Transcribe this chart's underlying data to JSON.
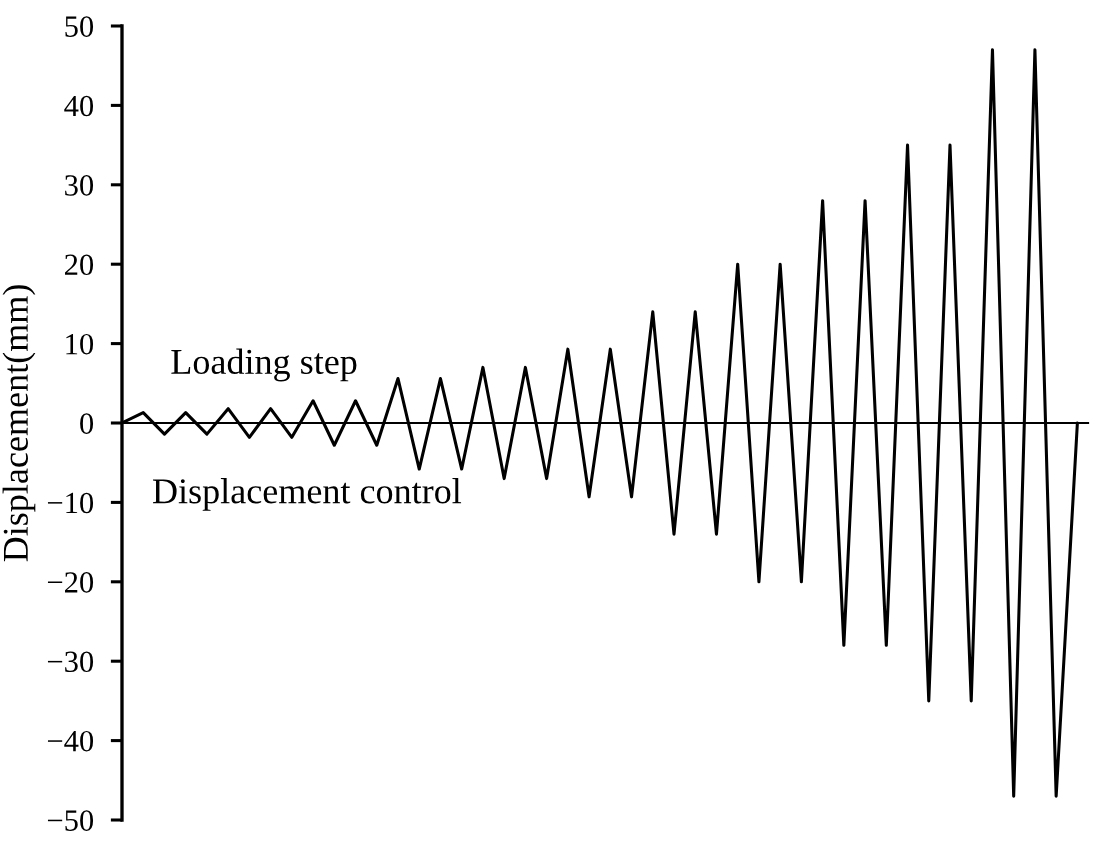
{
  "chart_data": {
    "type": "line",
    "ylabel": "Displacement(mm)",
    "categories": [
      null,
      null,
      null,
      null,
      null,
      null,
      null,
      null,
      null,
      null,
      null,
      null,
      null,
      null,
      null,
      null,
      null,
      null,
      null,
      null,
      null,
      null,
      null,
      null,
      null,
      null,
      null,
      null,
      null,
      null,
      null,
      null,
      null,
      null,
      null,
      null,
      null,
      null,
      null,
      null,
      null,
      null,
      null,
      null,
      null,
      null
    ],
    "series": [
      {
        "color": "#000000",
        "values": [
          0,
          1.3,
          -1.4,
          1.3,
          -1.4,
          1.8,
          -1.8,
          1.8,
          -1.8,
          2.8,
          -2.8,
          2.8,
          -2.8,
          5.6,
          -5.8,
          5.6,
          -5.8,
          7,
          -7,
          7,
          -7,
          9.3,
          -9.3,
          9.3,
          -9.3,
          14,
          -14,
          14,
          -14,
          20,
          -20,
          20,
          -20,
          28,
          -28,
          28,
          -28,
          35,
          -35,
          35,
          -35,
          47,
          -47,
          47,
          -47,
          0
        ]
      }
    ],
    "ylim": [
      -50,
      50
    ],
    "yticks": [
      {
        "value": -50,
        "label": "−50"
      },
      {
        "value": -40,
        "label": "−40"
      },
      {
        "value": -30,
        "label": "−30"
      },
      {
        "value": -20,
        "label": "−20"
      },
      {
        "value": -10,
        "label": "−10"
      },
      0,
      10,
      20,
      30,
      40,
      50
    ],
    "tick_labels": "y",
    "annotations": [
      "Loading step",
      "Displacement control"
    ]
  }
}
